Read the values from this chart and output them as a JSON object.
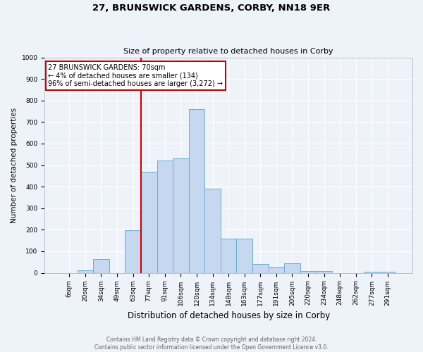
{
  "title_line1": "27, BRUNSWICK GARDENS, CORBY, NN18 9ER",
  "title_line2": "Size of property relative to detached houses in Corby",
  "xlabel": "Distribution of detached houses by size in Corby",
  "ylabel": "Number of detached properties",
  "categories": [
    "6sqm",
    "20sqm",
    "34sqm",
    "49sqm",
    "63sqm",
    "77sqm",
    "91sqm",
    "106sqm",
    "120sqm",
    "134sqm",
    "148sqm",
    "163sqm",
    "177sqm",
    "191sqm",
    "205sqm",
    "220sqm",
    "234sqm",
    "248sqm",
    "262sqm",
    "277sqm",
    "291sqm"
  ],
  "values": [
    0,
    12,
    65,
    0,
    197,
    470,
    520,
    530,
    760,
    390,
    160,
    160,
    42,
    28,
    45,
    10,
    8,
    0,
    0,
    5,
    5
  ],
  "bar_color": "#c5d8f0",
  "bar_edge_color": "#6baed6",
  "annotation_text": "27 BRUNSWICK GARDENS: 70sqm\n← 4% of detached houses are smaller (134)\n96% of semi-detached houses are larger (3,272) →",
  "annotation_box_color": "#ffffff",
  "annotation_box_edge_color": "#cc0000",
  "vline_color": "#cc0000",
  "vline_x": 4.5,
  "background_color": "#eef2f9",
  "footer_line1": "Contains HM Land Registry data © Crown copyright and database right 2024.",
  "footer_line2": "Contains public sector information licensed under the Open Government Licence v3.0.",
  "ylim": [
    0,
    1000
  ],
  "yticks": [
    0,
    100,
    200,
    300,
    400,
    500,
    600,
    700,
    800,
    900,
    1000
  ],
  "title1_fontsize": 9.5,
  "title2_fontsize": 8.0,
  "ylabel_fontsize": 7.5,
  "xlabel_fontsize": 8.5,
  "tick_fontsize": 6.5,
  "footer_fontsize": 5.5,
  "annot_fontsize": 7.0
}
